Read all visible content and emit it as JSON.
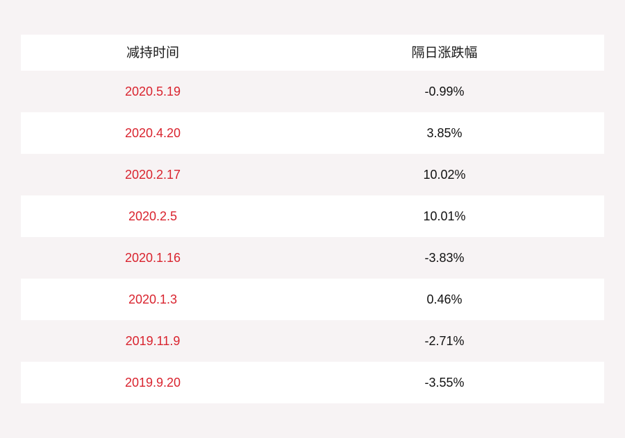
{
  "colors": {
    "background": "#f7f3f4",
    "row_white": "#ffffff",
    "date_text": "#d9232e",
    "value_text": "#111111"
  },
  "table": {
    "headers": {
      "date": "减持时间",
      "change": "隔日涨跌幅"
    },
    "rows": [
      {
        "date": "2020.5.19",
        "change": "-0.99%"
      },
      {
        "date": "2020.4.20",
        "change": "3.85%"
      },
      {
        "date": "2020.2.17",
        "change": "10.02%"
      },
      {
        "date": "2020.2.5",
        "change": "10.01%"
      },
      {
        "date": "2020.1.16",
        "change": "-3.83%"
      },
      {
        "date": "2020.1.3",
        "change": "0.46%"
      },
      {
        "date": "2019.11.9",
        "change": "-2.71%"
      },
      {
        "date": "2019.9.20",
        "change": "-3.55%"
      }
    ]
  }
}
